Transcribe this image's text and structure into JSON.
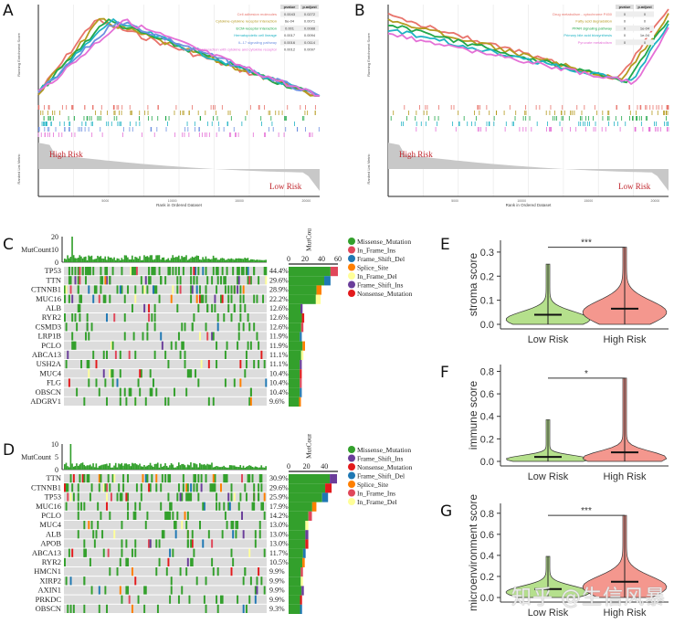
{
  "panels": {
    "A": {
      "label": "A",
      "type": "gsea",
      "ylabel_top": "Running Enrichment Score",
      "ylabel_bottom": "Ranked List Metric",
      "xlabel": "Rank in Ordered Dataset",
      "high_label": "High Risk",
      "low_label": "Low Risk",
      "x_ticks": [
        "5000",
        "10000",
        "15000",
        "20000"
      ],
      "table_headers": [
        "pvalue",
        "p.adjust"
      ],
      "pathways": [
        {
          "name": "Cell adhesion molecules",
          "color": "#e8736b",
          "pvalue": "0.0043",
          "padjust": "0.0272"
        },
        {
          "name": "Cytokine-cytokine receptor interaction",
          "color": "#b59a1f",
          "pvalue": "6e-04",
          "padjust": "0.0071"
        },
        {
          "name": "ECM-receptor interaction",
          "color": "#22a84a",
          "pvalue": "0.001",
          "padjust": "0.0088"
        },
        {
          "name": "Hematopoietic cell lineage",
          "color": "#1fb3c4",
          "pvalue": "0.0017",
          "padjust": "0.0094"
        },
        {
          "name": "IL-17 signaling pathway",
          "color": "#6c8fe0",
          "pvalue": "0.0016",
          "padjust": "0.0114"
        },
        {
          "name": "Viral protein interaction with cytokine and cytokine receptor",
          "color": "#e46fd6",
          "pvalue": "0.0012",
          "padjust": "0.0097"
        }
      ]
    },
    "B": {
      "label": "B",
      "type": "gsea",
      "ylabel_top": "Running Enrichment Score",
      "ylabel_bottom": "Ranked List Metric",
      "xlabel": "Rank in Ordered Dataset",
      "high_label": "High Risk",
      "low_label": "Low Risk",
      "x_ticks": [
        "5000",
        "10000",
        "15000",
        "20000"
      ],
      "table_headers": [
        "pvalue",
        "p.adjust"
      ],
      "pathways": [
        {
          "name": "Drug metabolism - cytochrome P450",
          "color": "#e8736b",
          "pvalue": "0",
          "padjust": "0"
        },
        {
          "name": "Fatty acid degradation",
          "color": "#b59a1f",
          "pvalue": "0",
          "padjust": "0"
        },
        {
          "name": "PPAR signaling pathway",
          "color": "#22a84a",
          "pvalue": "0",
          "padjust": "1e-04"
        },
        {
          "name": "Primary bile acid biosynthesis",
          "color": "#1fb3c4",
          "pvalue": "0",
          "padjust": "1e-04"
        },
        {
          "name": "Pyruvate metabolism",
          "color": "#e46fd6",
          "pvalue": "0",
          "padjust": "0"
        }
      ]
    },
    "C": {
      "label": "C",
      "type": "oncoplot",
      "top_axis_label": "MutCount",
      "top_ticks": [
        "0",
        "10",
        "20"
      ],
      "right_axis_label": "MutCount",
      "right_ticks": [
        "0",
        "20",
        "40",
        "60"
      ],
      "right_max": 60,
      "genes": [
        {
          "gene": "TP53",
          "pct": "44.4%",
          "count": 60
        },
        {
          "gene": "TTN",
          "pct": "29.6%",
          "count": 51
        },
        {
          "gene": "CTNNB1",
          "pct": "28.9%",
          "count": 40
        },
        {
          "gene": "MUC16",
          "pct": "22.2%",
          "count": 39
        },
        {
          "gene": "ALB",
          "pct": "12.6%",
          "count": 17
        },
        {
          "gene": "RYR2",
          "pct": "12.6%",
          "count": 19
        },
        {
          "gene": "CSMD3",
          "pct": "12.6%",
          "count": 18
        },
        {
          "gene": "LRP1B",
          "pct": "11.9%",
          "count": 16
        },
        {
          "gene": "PCLO",
          "pct": "11.9%",
          "count": 20
        },
        {
          "gene": "ABCA13",
          "pct": "11.1%",
          "count": 18
        },
        {
          "gene": "USH2A",
          "pct": "11.1%",
          "count": 16
        },
        {
          "gene": "MUC4",
          "pct": "10.4%",
          "count": 16
        },
        {
          "gene": "FLG",
          "pct": "10.4%",
          "count": 16
        },
        {
          "gene": "OBSCN",
          "pct": "10.4%",
          "count": 16
        },
        {
          "gene": "ADGRV1",
          "pct": "9.6%",
          "count": 15
        }
      ],
      "legend": [
        {
          "label": "Missense_Mutation",
          "color": "#33a02c"
        },
        {
          "label": "In_Frame_Ins",
          "color": "#e0475a"
        },
        {
          "label": "Frame_Shift_Del",
          "color": "#1f78b4"
        },
        {
          "label": "Splice_Site",
          "color": "#ff7f00"
        },
        {
          "label": "In_Frame_Del",
          "color": "#ffff99"
        },
        {
          "label": "Frame_Shift_Ins",
          "color": "#6a3d9a"
        },
        {
          "label": "Nonsense_Mutation",
          "color": "#e31a1c"
        }
      ]
    },
    "D": {
      "label": "D",
      "type": "oncoplot",
      "top_axis_label": "MutCount",
      "top_ticks": [
        "0",
        "5",
        "10"
      ],
      "right_axis_label": "MutCount",
      "right_ticks": [
        "0",
        "20",
        "40"
      ],
      "right_max": 55,
      "genes": [
        {
          "gene": "TTN",
          "pct": "30.9%",
          "count": 54
        },
        {
          "gene": "CTNNB1",
          "pct": "29.6%",
          "count": 48
        },
        {
          "gene": "TP53",
          "pct": "25.9%",
          "count": 44
        },
        {
          "gene": "MUC16",
          "pct": "17.9%",
          "count": 31
        },
        {
          "gene": "PCLO",
          "pct": "14.2%",
          "count": 26
        },
        {
          "gene": "MUC4",
          "pct": "13.0%",
          "count": 22
        },
        {
          "gene": "ALB",
          "pct": "13.0%",
          "count": 22
        },
        {
          "gene": "APOB",
          "pct": "13.0%",
          "count": 22
        },
        {
          "gene": "ABCA13",
          "pct": "11.7%",
          "count": 19
        },
        {
          "gene": "RYR2",
          "pct": "10.5%",
          "count": 18
        },
        {
          "gene": "HMCN1",
          "pct": "9.9%",
          "count": 16
        },
        {
          "gene": "XIRP2",
          "pct": "9.9%",
          "count": 16
        },
        {
          "gene": "AXIN1",
          "pct": "9.9%",
          "count": 17
        },
        {
          "gene": "PRKDC",
          "pct": "9.9%",
          "count": 15
        },
        {
          "gene": "OBSCN",
          "pct": "9.3%",
          "count": 15
        }
      ],
      "legend": [
        {
          "label": "Missense_Mutation",
          "color": "#33a02c"
        },
        {
          "label": "Frame_Shift_Ins",
          "color": "#6a3d9a"
        },
        {
          "label": "Nonsense_Mutation",
          "color": "#e31a1c"
        },
        {
          "label": "Frame_Shift_Del",
          "color": "#1f78b4"
        },
        {
          "label": "Splice_Site",
          "color": "#ff7f00"
        },
        {
          "label": "In_Frame_Ins",
          "color": "#e0475a"
        },
        {
          "label": "In_Frame_Del",
          "color": "#ffff99"
        }
      ]
    },
    "E": {
      "label": "E",
      "significance": "***"
    },
    "F": {
      "label": "F",
      "significance": "*"
    },
    "G": {
      "label": "G",
      "significance": "***"
    }
  },
  "chart_data": [
    {
      "type": "violin",
      "panel": "E",
      "ylabel": "stroma score",
      "categories": [
        "Low Risk",
        "High Risk"
      ],
      "colors": [
        "#b5e08c",
        "#f4978e"
      ],
      "y_ticks": [
        "0.0",
        "0.1",
        "0.2",
        "0.3"
      ],
      "ylim": [
        0,
        0.33
      ],
      "series": [
        {
          "name": "Low Risk",
          "median": 0.04,
          "max": 0.25,
          "min": 0.0,
          "mode": 0.02
        },
        {
          "name": "High Risk",
          "median": 0.065,
          "max": 0.32,
          "min": 0.0,
          "mode": 0.05
        }
      ],
      "significance": "***"
    },
    {
      "type": "violin",
      "panel": "F",
      "ylabel": "immune score",
      "categories": [
        "Low Risk",
        "High Risk"
      ],
      "colors": [
        "#b5e08c",
        "#f4978e"
      ],
      "y_ticks": [
        "0.0",
        "0.2",
        "0.4",
        "0.6",
        "0.8"
      ],
      "ylim": [
        0,
        0.82
      ],
      "series": [
        {
          "name": "Low Risk",
          "median": 0.04,
          "max": 0.37,
          "min": 0.0,
          "mode": 0.02
        },
        {
          "name": "High Risk",
          "median": 0.08,
          "max": 0.74,
          "min": 0.0,
          "mode": 0.03
        }
      ],
      "significance": "*"
    },
    {
      "type": "violin",
      "panel": "G",
      "ylabel": "microenvironment score",
      "categories": [
        "Low Risk",
        "High Risk"
      ],
      "colors": [
        "#b5e08c",
        "#f4978e"
      ],
      "y_ticks": [
        "0.0",
        "0.2",
        "0.4",
        "0.6",
        "0.8"
      ],
      "ylim": [
        0,
        0.85
      ],
      "series": [
        {
          "name": "Low Risk",
          "median": 0.08,
          "max": 0.39,
          "min": 0.0,
          "mode": 0.05
        },
        {
          "name": "High Risk",
          "median": 0.15,
          "max": 0.78,
          "min": 0.0,
          "mode": 0.1
        }
      ],
      "significance": "***"
    }
  ],
  "watermark": "知乎 @生信风暴"
}
